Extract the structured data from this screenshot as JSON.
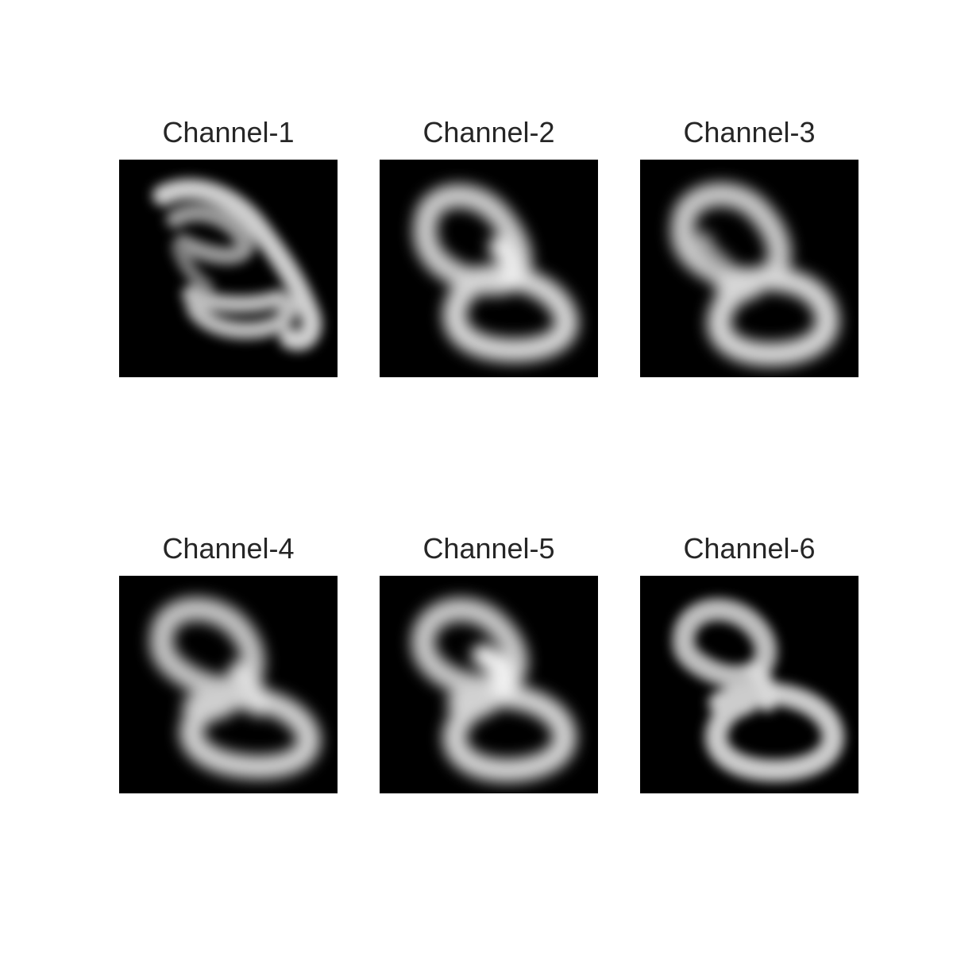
{
  "figure": {
    "panels": [
      {
        "title": "Channel-1"
      },
      {
        "title": "Channel-2"
      },
      {
        "title": "Channel-3"
      },
      {
        "title": "Channel-4"
      },
      {
        "title": "Channel-5"
      },
      {
        "title": "Channel-6"
      }
    ]
  }
}
